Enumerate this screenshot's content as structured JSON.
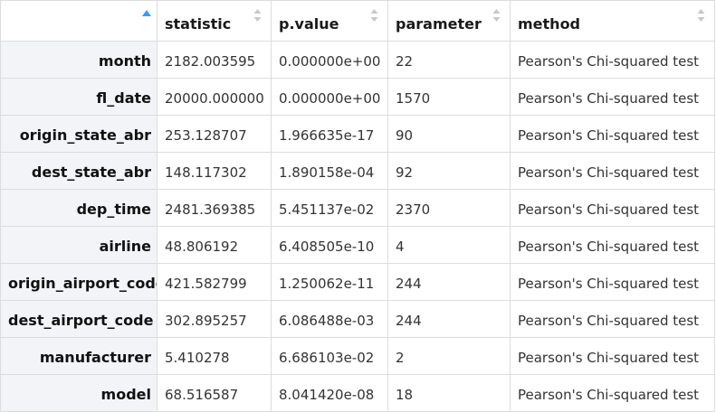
{
  "columns": [
    "",
    "statistic",
    "p.value",
    "parameter",
    "method"
  ],
  "icons": {
    "rowname_sort": "sort-ascending-icon",
    "column_sort": "sort-unsorted-icon"
  },
  "colors": {
    "active_sort": "#3b99fc",
    "inactive_sort": "#c8c8c8",
    "row_header_bg": "#f2f4f7",
    "grid": "#dcdcdc"
  },
  "rows": [
    {
      "name": "month",
      "statistic": "2182.003595",
      "pvalue": "0.000000e+00",
      "parameter": "22",
      "method": "Pearson's Chi-squared test"
    },
    {
      "name": "fl_date",
      "statistic": "20000.000000",
      "pvalue": "0.000000e+00",
      "parameter": "1570",
      "method": "Pearson's Chi-squared test"
    },
    {
      "name": "origin_state_abr",
      "statistic": "253.128707",
      "pvalue": "1.966635e-17",
      "parameter": "90",
      "method": "Pearson's Chi-squared test"
    },
    {
      "name": "dest_state_abr",
      "statistic": "148.117302",
      "pvalue": "1.890158e-04",
      "parameter": "92",
      "method": "Pearson's Chi-squared test"
    },
    {
      "name": "dep_time",
      "statistic": "2481.369385",
      "pvalue": "5.451137e-02",
      "parameter": "2370",
      "method": "Pearson's Chi-squared test"
    },
    {
      "name": "airline",
      "statistic": "48.806192",
      "pvalue": "6.408505e-10",
      "parameter": "4",
      "method": "Pearson's Chi-squared test"
    },
    {
      "name": "origin_airport_code",
      "statistic": "421.582799",
      "pvalue": "1.250062e-11",
      "parameter": "244",
      "method": "Pearson's Chi-squared test"
    },
    {
      "name": "dest_airport_code",
      "statistic": "302.895257",
      "pvalue": "6.086488e-03",
      "parameter": "244",
      "method": "Pearson's Chi-squared test"
    },
    {
      "name": "manufacturer",
      "statistic": "5.410278",
      "pvalue": "6.686103e-02",
      "parameter": "2",
      "method": "Pearson's Chi-squared test"
    },
    {
      "name": "model",
      "statistic": "68.516587",
      "pvalue": "8.041420e-08",
      "parameter": "18",
      "method": "Pearson's Chi-squared test"
    }
  ]
}
